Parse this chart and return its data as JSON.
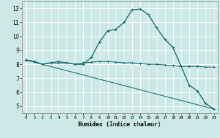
{
  "xlabel": "Humidex (Indice chaleur)",
  "background_color": "#cce9e8",
  "grid_color": "#ffffff",
  "line_color": "#1a6b6b",
  "xlim": [
    -0.5,
    23.5
  ],
  "ylim": [
    4.5,
    12.5
  ],
  "xticks": [
    0,
    1,
    2,
    3,
    4,
    5,
    6,
    7,
    8,
    9,
    10,
    11,
    12,
    13,
    14,
    15,
    16,
    17,
    18,
    19,
    20,
    21,
    22,
    23
  ],
  "yticks": [
    5,
    6,
    7,
    8,
    9,
    10,
    11,
    12
  ],
  "curve1_x": [
    0,
    1,
    2,
    3,
    4,
    5,
    6,
    7,
    8,
    9,
    10,
    11,
    12,
    13,
    14,
    15,
    16,
    17,
    18,
    19,
    20,
    21,
    22,
    23
  ],
  "curve1_y": [
    8.3,
    8.2,
    8.0,
    8.1,
    8.1,
    8.1,
    8.0,
    8.0,
    8.5,
    9.6,
    10.4,
    10.5,
    11.0,
    11.9,
    11.95,
    11.55,
    10.6,
    9.8,
    9.2,
    7.85,
    6.5,
    6.1,
    5.2,
    4.8
  ],
  "curve2_x": [
    0,
    1,
    2,
    3,
    4,
    5,
    6,
    7,
    8,
    9,
    10,
    11,
    12,
    13,
    14,
    15,
    16,
    17,
    18,
    19,
    20,
    21,
    22,
    23
  ],
  "curve2_y": [
    8.3,
    8.2,
    8.0,
    8.1,
    8.2,
    8.1,
    8.0,
    8.1,
    8.15,
    8.2,
    8.2,
    8.15,
    8.1,
    8.1,
    8.05,
    8.0,
    8.0,
    7.95,
    7.9,
    7.85,
    7.85,
    7.85,
    7.8,
    7.8
  ],
  "curve3_x": [
    0,
    23
  ],
  "curve3_y": [
    8.3,
    4.8
  ]
}
